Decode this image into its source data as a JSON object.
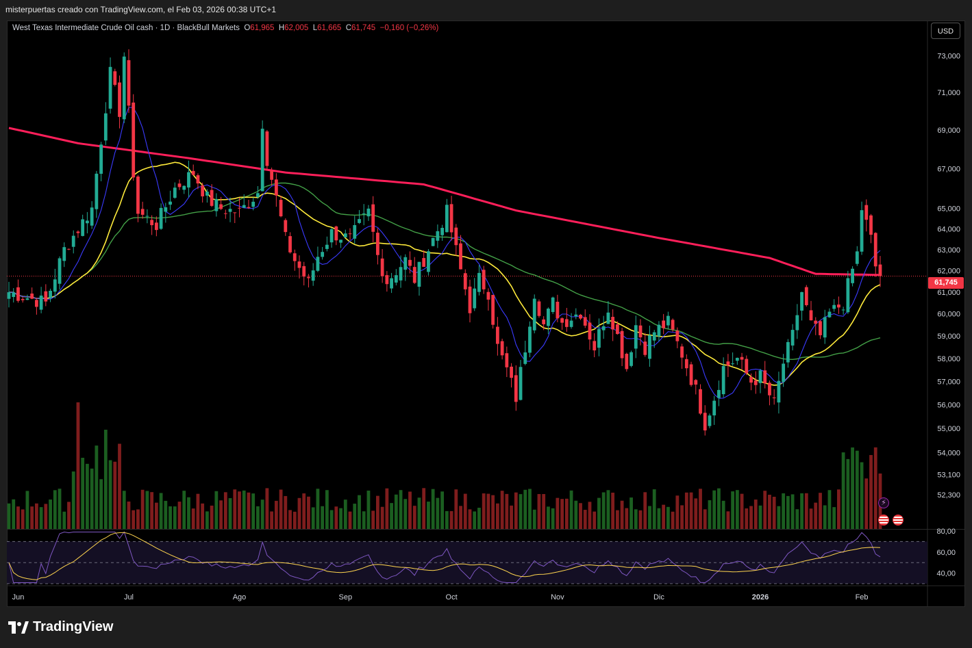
{
  "header": {
    "caption": "misterpuertas creado con TradingView.com, el Feb 03, 2026 00:38 UTC+1"
  },
  "legend": {
    "symbol": "West Texas Intermediate Crude Oil cash · 1D · BlackBull Markets",
    "open_label": "O",
    "open": "61,965",
    "high_label": "H",
    "high": "62,005",
    "low_label": "L",
    "low": "61,665",
    "close_label": "C",
    "close": "61,745",
    "change": "−0,160 (−0,26%)"
  },
  "currency_button": "USD",
  "last_price_tag": "61,745",
  "footer": {
    "brand": "TradingView"
  },
  "icons": [
    "lightning-icon",
    "us-flag-event-icon",
    "tv-logo-icon"
  ],
  "colors": {
    "up": "#22ab94",
    "down": "#f23645",
    "ma_fast": "#3b3bff",
    "ma_mid": "#ffeb3b",
    "ma_slow": "#43a047",
    "ma_long": "#ff1f5a",
    "rsi": "#7e57c2",
    "rsi_ma": "#ffd54f"
  },
  "chart_data": [
    {
      "type": "candlestick",
      "title": "West Texas Intermediate Crude Oil cash · 1D · BlackBull Markets",
      "x_ticks": [
        "Jun",
        "Jul",
        "Ago",
        "Sep",
        "Oct",
        "Nov",
        "Dic",
        "2026",
        "Feb"
      ],
      "y_ticks": [
        "73,000",
        "71,000",
        "69,000",
        "67,000",
        "65,000",
        "64,000",
        "63,000",
        "62,000",
        "61,000",
        "60,000",
        "59,000",
        "58,000",
        "57,000",
        "56,000",
        "55,000",
        "54,000",
        "53,100",
        "52,300"
      ],
      "y_scale": "log",
      "y_range": [
        51.3,
        74.2
      ],
      "last_price": 61.745,
      "anchors": [
        [
          0,
          61.0
        ],
        [
          8,
          60.5
        ],
        [
          12,
          63.0
        ],
        [
          18,
          65.0
        ],
        [
          20,
          68.5
        ],
        [
          22,
          72.0
        ],
        [
          24,
          70.0
        ],
        [
          25,
          73.0
        ],
        [
          27,
          66.8
        ],
        [
          28,
          64.8
        ],
        [
          32,
          64.2
        ],
        [
          36,
          66.0
        ],
        [
          40,
          66.8
        ],
        [
          43,
          65.5
        ],
        [
          46,
          65.0
        ],
        [
          50,
          64.8
        ],
        [
          54,
          65.8
        ],
        [
          55,
          69.4
        ],
        [
          56,
          67.5
        ],
        [
          58,
          65.5
        ],
        [
          60,
          63.5
        ],
        [
          62,
          62.5
        ],
        [
          65,
          61.4
        ],
        [
          67,
          62.7
        ],
        [
          70,
          63.8
        ],
        [
          74,
          63.5
        ],
        [
          78,
          64.8
        ],
        [
          80,
          62.7
        ],
        [
          82,
          61.5
        ],
        [
          86,
          62.5
        ],
        [
          88,
          61.6
        ],
        [
          92,
          63.5
        ],
        [
          95,
          64.8
        ],
        [
          98,
          62.0
        ],
        [
          100,
          60.3
        ],
        [
          102,
          61.6
        ],
        [
          104,
          61.0
        ],
        [
          106,
          58.5
        ],
        [
          108,
          57.5
        ],
        [
          110,
          56.3
        ],
        [
          112,
          58.5
        ],
        [
          114,
          61.0
        ],
        [
          116,
          59.5
        ],
        [
          118,
          60.5
        ],
        [
          120,
          59.6
        ],
        [
          124,
          60.1
        ],
        [
          127,
          58.5
        ],
        [
          130,
          60.3
        ],
        [
          132,
          59.0
        ],
        [
          134,
          57.6
        ],
        [
          136,
          59.5
        ],
        [
          138,
          58.5
        ],
        [
          140,
          59.2
        ],
        [
          143,
          59.6
        ],
        [
          146,
          58.2
        ],
        [
          149,
          56.6
        ],
        [
          151,
          55.2
        ],
        [
          153,
          56.3
        ],
        [
          155,
          57.6
        ],
        [
          158,
          58.0
        ],
        [
          161,
          57.0
        ],
        [
          163,
          57.2
        ],
        [
          166,
          56.0
        ],
        [
          168,
          57.8
        ],
        [
          170,
          59.0
        ],
        [
          172,
          61.0
        ],
        [
          174,
          59.5
        ],
        [
          176,
          59.0
        ],
        [
          178,
          60.0
        ],
        [
          181,
          60.5
        ],
        [
          182,
          61.3
        ],
        [
          184,
          62.8
        ],
        [
          185,
          65.0
        ],
        [
          187,
          63.5
        ],
        [
          188,
          62.2
        ],
        [
          189,
          61.745
        ]
      ],
      "indicators": [
        {
          "name": "MA 10",
          "color": "#3b3bff"
        },
        {
          "name": "MA 20",
          "color": "#ffeb3b"
        },
        {
          "name": "MA 50",
          "color": "#43a047"
        },
        {
          "name": "MA 200",
          "color": "#ff1f5a",
          "values_at": [
            [
              0,
              69.1
            ],
            [
              15,
              68.3
            ],
            [
              40,
              67.5
            ],
            [
              60,
              66.8
            ],
            [
              90,
              66.2
            ],
            [
              110,
              64.9
            ],
            [
              140,
              63.6
            ],
            [
              165,
              62.6
            ],
            [
              175,
              61.85
            ],
            [
              189,
              61.8
            ]
          ]
        }
      ]
    },
    {
      "type": "bar",
      "title": "Volume",
      "note": "volume histogram, tall spikes around late June and late January"
    },
    {
      "type": "line",
      "title": "RSI",
      "y_ticks": [
        "80,00",
        "60,00",
        "40,00"
      ],
      "y_range": [
        30,
        80
      ],
      "bands": [
        70,
        50,
        30
      ]
    }
  ]
}
